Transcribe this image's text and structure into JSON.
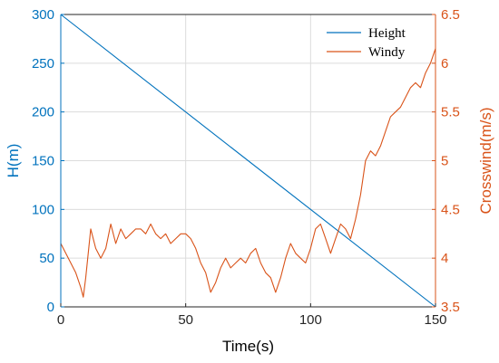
{
  "chart_data": {
    "type": "line",
    "xlabel": "Time(s)",
    "ylabel_left": "H(m)",
    "ylabel_right": "Crosswind(m/s)",
    "xlim": [
      0,
      150
    ],
    "ylim_left": [
      0,
      300
    ],
    "ylim_right": [
      3.5,
      6.5
    ],
    "x_ticks": [
      0,
      50,
      100,
      150
    ],
    "y_left_ticks": [
      0,
      50,
      100,
      150,
      200,
      250,
      300
    ],
    "y_right_ticks": [
      3.5,
      4,
      4.5,
      5,
      5.5,
      6,
      6.5
    ],
    "y_right_tick_labels": [
      "3.5",
      "4",
      "4.5",
      "5",
      "5.5",
      "6",
      "6.5"
    ],
    "grid": true,
    "legend_position": "top-right",
    "colors": {
      "height": "#0072BD",
      "windy": "#D95319"
    },
    "series": [
      {
        "name": "Height",
        "axis": "left",
        "x": [
          0,
          150
        ],
        "y": [
          300,
          0
        ]
      },
      {
        "name": "Windy",
        "axis": "right",
        "x": [
          0,
          2,
          4,
          6,
          8,
          9,
          10,
          12,
          14,
          16,
          18,
          20,
          22,
          24,
          26,
          28,
          30,
          32,
          34,
          36,
          38,
          40,
          42,
          44,
          46,
          48,
          50,
          52,
          54,
          56,
          58,
          60,
          62,
          64,
          66,
          68,
          70,
          72,
          74,
          76,
          78,
          80,
          82,
          84,
          86,
          88,
          90,
          92,
          94,
          96,
          98,
          100,
          102,
          104,
          106,
          108,
          110,
          112,
          114,
          116,
          118,
          120,
          122,
          124,
          126,
          128,
          130,
          132,
          134,
          136,
          138,
          140,
          142,
          144,
          146,
          148,
          150
        ],
        "y": [
          4.15,
          4.05,
          3.95,
          3.85,
          3.7,
          3.6,
          3.8,
          4.3,
          4.1,
          4.0,
          4.1,
          4.35,
          4.15,
          4.3,
          4.2,
          4.25,
          4.3,
          4.3,
          4.25,
          4.35,
          4.25,
          4.2,
          4.25,
          4.15,
          4.2,
          4.25,
          4.25,
          4.2,
          4.1,
          3.95,
          3.85,
          3.65,
          3.75,
          3.9,
          4.0,
          3.9,
          3.95,
          4.0,
          3.95,
          4.05,
          4.1,
          3.95,
          3.85,
          3.8,
          3.65,
          3.8,
          4.0,
          4.15,
          4.05,
          4.0,
          3.95,
          4.1,
          4.3,
          4.35,
          4.2,
          4.05,
          4.2,
          4.35,
          4.3,
          4.2,
          4.4,
          4.65,
          5.0,
          5.1,
          5.05,
          5.15,
          5.3,
          5.45,
          5.5,
          5.55,
          5.65,
          5.75,
          5.8,
          5.75,
          5.9,
          6.0,
          6.15
        ]
      }
    ]
  }
}
